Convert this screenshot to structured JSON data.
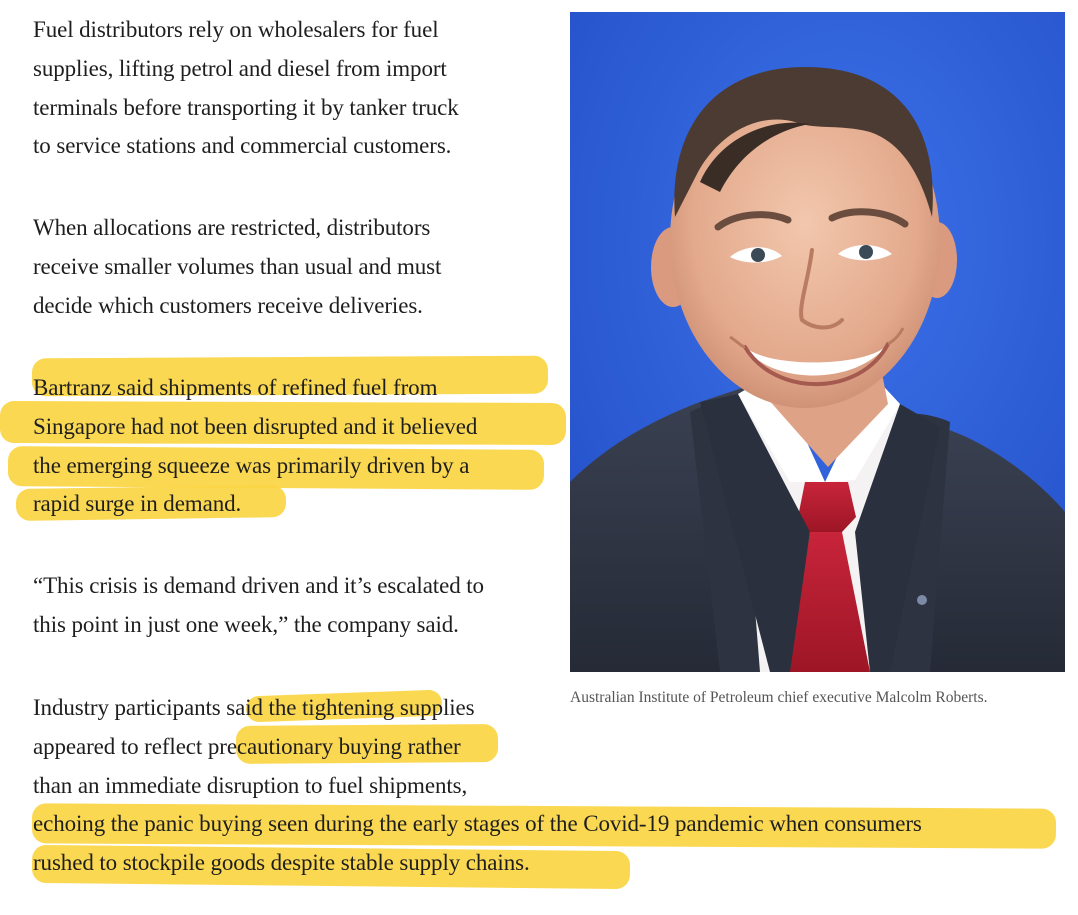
{
  "article": {
    "para1": [
      "Fuel distributors rely on wholesalers for fuel",
      "supplies, lifting petrol and diesel from import",
      "terminals before transporting it by tanker truck",
      "to service stations and commercial customers."
    ],
    "para2": [
      "When allocations are restricted, distributors",
      "receive smaller volumes than usual and must",
      "decide which customers receive deliveries."
    ],
    "para3": [
      "Bartranz said shipments of refined fuel from",
      "Singapore had not been disrupted and it believed",
      "the emerging squeeze was primarily driven by a",
      "rapid surge in demand."
    ],
    "para4": [
      "“This crisis is demand driven and it’s escalated to",
      "this point in just one week,” the company said."
    ],
    "para5": [
      "Industry participants said the tightening supplies",
      "appeared to reflect precautionary buying rather",
      "than an immediate disruption to fuel shipments,",
      "echoing the panic buying seen during the early stages of the Covid-19 pandemic when consumers",
      "rushed to stockpile goods despite stable supply chains."
    ]
  },
  "photo": {
    "caption": "Australian Institute of Petroleum chief executive Malcolm Roberts.",
    "background_color": "#2f5fd8"
  },
  "highlight_color": "#fbd542"
}
